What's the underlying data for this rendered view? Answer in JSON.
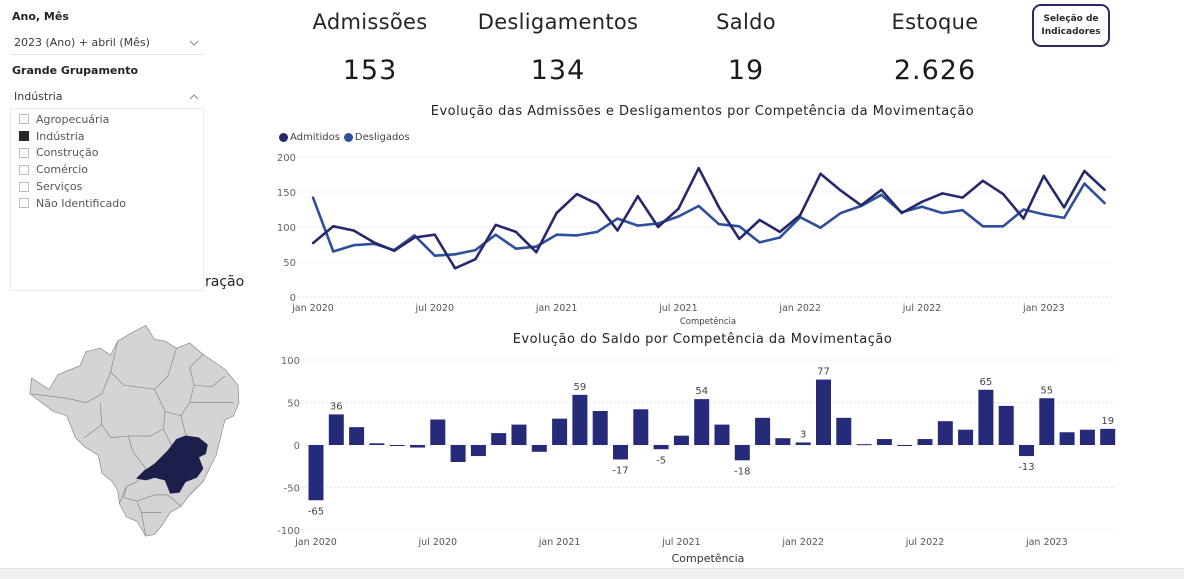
{
  "filters": {
    "period": {
      "label": "Ano, Mês",
      "value": "2023 (Ano) + abril (Mês)"
    },
    "group": {
      "label": "Grande Grupamento",
      "value": "Indústria",
      "options": [
        {
          "label": "Agropecuária",
          "checked": false
        },
        {
          "label": "Indústria",
          "checked": true
        },
        {
          "label": "Construção",
          "checked": false
        },
        {
          "label": "Comércio",
          "checked": false
        },
        {
          "label": "Serviços",
          "checked": false
        },
        {
          "label": "Não Identificado",
          "checked": false
        }
      ]
    }
  },
  "map": {
    "title_fragment": "ração",
    "highlighted_state": "Minas Gerais",
    "colors": {
      "highlight": "#1c1f4a",
      "base": "#d4d4d4",
      "border": "#8a8a8a"
    }
  },
  "kpis": [
    {
      "label": "Admissões",
      "value": "153"
    },
    {
      "label": "Desligamentos",
      "value": "134"
    },
    {
      "label": "Saldo",
      "value": "19"
    },
    {
      "label": "Estoque",
      "value": "2.626"
    }
  ],
  "selection_button": {
    "line1": "Seleção de",
    "line2": "Indicadores"
  },
  "colors": {
    "admitidos": "#26296b",
    "desligados": "#2e4f9c",
    "bars": "#252b78"
  },
  "chart_data": [
    {
      "type": "line",
      "title": "Evolução das Admissões e Desligamentos por Competência da Movimentação",
      "xlabel": "Competência",
      "ylabel": "",
      "ylim": [
        0,
        200
      ],
      "yticks": [
        0,
        50,
        100,
        150,
        200
      ],
      "grid": true,
      "legend_position": "top-left",
      "x_tick_labels": [
        "jan 2020",
        "jul 2020",
        "jan 2021",
        "jul 2021",
        "jan 2022",
        "jul 2022",
        "jan 2023"
      ],
      "x_tick_indices": [
        0,
        6,
        12,
        18,
        24,
        30,
        36
      ],
      "x": [
        "2020-01",
        "2020-02",
        "2020-03",
        "2020-04",
        "2020-05",
        "2020-06",
        "2020-07",
        "2020-08",
        "2020-09",
        "2020-10",
        "2020-11",
        "2020-12",
        "2021-01",
        "2021-02",
        "2021-03",
        "2021-04",
        "2021-05",
        "2021-06",
        "2021-07",
        "2021-08",
        "2021-09",
        "2021-10",
        "2021-11",
        "2021-12",
        "2022-01",
        "2022-02",
        "2022-03",
        "2022-04",
        "2022-05",
        "2022-06",
        "2022-07",
        "2022-08",
        "2022-09",
        "2022-10",
        "2022-11",
        "2022-12",
        "2023-01",
        "2023-02",
        "2023-03",
        "2023-04"
      ],
      "series": [
        {
          "name": "Admitidos",
          "values": [
            77,
            101,
            95,
            78,
            66,
            85,
            89,
            41,
            54,
            103,
            93,
            64,
            120,
            147,
            133,
            95,
            144,
            100,
            126,
            184,
            128,
            83,
            110,
            93,
            117,
            176,
            152,
            131,
            153,
            120,
            136,
            148,
            142,
            166,
            147,
            112,
            173,
            128,
            180,
            153
          ]
        },
        {
          "name": "Desligados",
          "values": [
            142,
            65,
            74,
            76,
            67,
            88,
            59,
            61,
            67,
            89,
            69,
            72,
            89,
            88,
            93,
            112,
            102,
            105,
            115,
            130,
            104,
            101,
            78,
            85,
            114,
            99,
            120,
            130,
            146,
            121,
            129,
            120,
            124,
            101,
            101,
            125,
            118,
            113,
            162,
            134
          ]
        }
      ]
    },
    {
      "type": "bar",
      "title": "Evolução do Saldo por Competência da Movimentação",
      "xlabel": "Competência",
      "ylabel": "",
      "ylim": [
        -100,
        100
      ],
      "yticks": [
        -100,
        -50,
        0,
        50,
        100
      ],
      "grid": true,
      "x_tick_labels": [
        "jan 2020",
        "jul 2020",
        "jan 2021",
        "jul 2021",
        "jan 2022",
        "jul 2022",
        "jan 2023"
      ],
      "x_tick_indices": [
        0,
        6,
        12,
        18,
        24,
        30,
        36
      ],
      "categories": [
        "2020-01",
        "2020-02",
        "2020-03",
        "2020-04",
        "2020-05",
        "2020-06",
        "2020-07",
        "2020-08",
        "2020-09",
        "2020-10",
        "2020-11",
        "2020-12",
        "2021-01",
        "2021-02",
        "2021-03",
        "2021-04",
        "2021-05",
        "2021-06",
        "2021-07",
        "2021-08",
        "2021-09",
        "2021-10",
        "2021-11",
        "2021-12",
        "2022-01",
        "2022-02",
        "2022-03",
        "2022-04",
        "2022-05",
        "2022-06",
        "2022-07",
        "2022-08",
        "2022-09",
        "2022-10",
        "2022-11",
        "2022-12",
        "2023-01",
        "2023-02",
        "2023-03",
        "2023-04"
      ],
      "values": [
        -65,
        36,
        21,
        2,
        -1,
        -3,
        30,
        -20,
        -13,
        14,
        24,
        -8,
        31,
        59,
        40,
        -17,
        42,
        -5,
        11,
        54,
        24,
        -18,
        32,
        8,
        3,
        77,
        32,
        1,
        7,
        -1,
        7,
        28,
        18,
        65,
        46,
        -13,
        55,
        15,
        18,
        19
      ],
      "data_labels": {
        "0": "-65",
        "1": "36",
        "13": "59",
        "15": "-17",
        "17": "-5",
        "19": "54",
        "21": "-18",
        "24": "3",
        "25": "77",
        "33": "65",
        "35": "-13",
        "36": "55",
        "39": "19"
      }
    }
  ]
}
